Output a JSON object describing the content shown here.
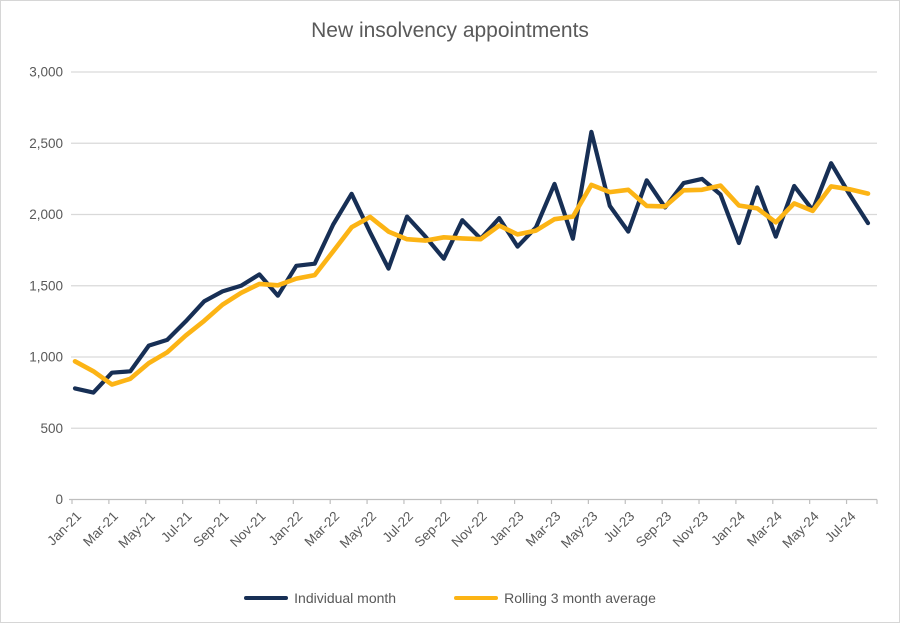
{
  "chart_data": {
    "type": "line",
    "title": "New insolvency appointments",
    "x": [
      "Jan-21",
      "Feb-21",
      "Mar-21",
      "Apr-21",
      "May-21",
      "Jun-21",
      "Jul-21",
      "Aug-21",
      "Sep-21",
      "Oct-21",
      "Nov-21",
      "Dec-21",
      "Jan-22",
      "Feb-22",
      "Mar-22",
      "Apr-22",
      "May-22",
      "Jun-22",
      "Jul-22",
      "Aug-22",
      "Sep-22",
      "Oct-22",
      "Nov-22",
      "Dec-22",
      "Jan-23",
      "Feb-23",
      "Mar-23",
      "Apr-23",
      "May-23",
      "Jun-23",
      "Jul-23",
      "Aug-23",
      "Sep-23",
      "Oct-23",
      "Nov-23",
      "Dec-23",
      "Jan-24",
      "Feb-24",
      "Mar-24",
      "Apr-24",
      "May-24",
      "Jun-24",
      "Jul-24",
      "Aug-24"
    ],
    "x_tick_labels": [
      "Jan-21",
      "Mar-21",
      "May-21",
      "Jul-21",
      "Sep-21",
      "Nov-21",
      "Jan-22",
      "Mar-22",
      "May-22",
      "Jul-22",
      "Sep-22",
      "Nov-22",
      "Jan-23",
      "Mar-23",
      "May-23",
      "Jul-23",
      "Sep-23",
      "Nov-23",
      "Jan-24",
      "Mar-24",
      "May-24",
      "Jul-24"
    ],
    "y_ticks": [
      0,
      500,
      1000,
      1500,
      2000,
      2500,
      3000
    ],
    "y_tick_labels": [
      "0",
      "500",
      "1,000",
      "1,500",
      "2,000",
      "2,500",
      "3,000"
    ],
    "ylim": [
      0,
      3000
    ],
    "grid": "horizontal",
    "legend_position": "bottom",
    "series": [
      {
        "name": "Individual month",
        "color": "#172f55",
        "values": [
          780,
          750,
          890,
          900,
          1080,
          1120,
          1250,
          1390,
          1460,
          1500,
          1580,
          1430,
          1640,
          1655,
          1930,
          2145,
          1875,
          1620,
          1985,
          1845,
          1690,
          1960,
          1830,
          1975,
          1775,
          1910,
          2215,
          1830,
          2580,
          2060,
          1880,
          2240,
          2050,
          2220,
          2250,
          2140,
          1800,
          2190,
          1845,
          2200,
          2030,
          2360,
          2140,
          1940
        ]
      },
      {
        "name": "Rolling 3 month average",
        "color": "#fcb415",
        "values": [
          970,
          900,
          807,
          847,
          957,
          1033,
          1150,
          1253,
          1367,
          1450,
          1513,
          1503,
          1550,
          1575,
          1742,
          1910,
          1983,
          1880,
          1827,
          1817,
          1840,
          1832,
          1827,
          1922,
          1860,
          1887,
          1967,
          1985,
          2208,
          2157,
          2173,
          2060,
          2057,
          2170,
          2173,
          2203,
          2063,
          2043,
          1945,
          2078,
          2025,
          2197,
          2177,
          2147
        ]
      }
    ],
    "colors": {
      "title_text": "#595959",
      "axis_text": "#595959",
      "gridline": "#d9d9d9",
      "axis_line": "#bfbfbf"
    }
  }
}
